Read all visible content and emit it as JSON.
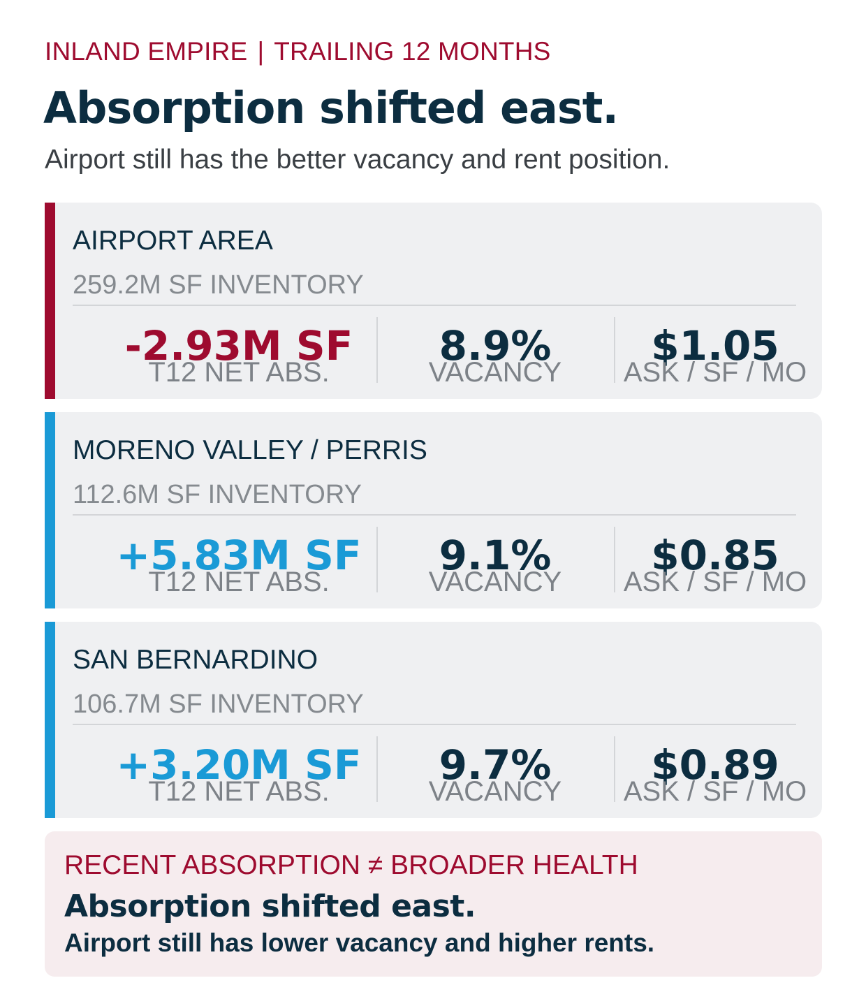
{
  "header": {
    "region": "INLAND EMPIRE",
    "separator": "|",
    "period": "TRAILING 12 MONTHS",
    "title": "Absorption shifted east.",
    "subtitle": "Airport still has the better vacancy and rent position."
  },
  "colors": {
    "negative_accent": "#9e0b2f",
    "positive_accent": "#1a9ad6",
    "ink": "#0c2d40",
    "card_bg": "#eff0f2",
    "callout_bg": "#f6ecee"
  },
  "submarkets": [
    {
      "name": "AIRPORT AREA",
      "inventory": "259.2M SF INVENTORY",
      "abs_value": "-2.93M SF",
      "abs_label": "T12 NET ABS.",
      "vacancy_value": "8.9%",
      "vacancy_label": "VACANCY",
      "rent_value": "$1.05",
      "rent_label": "ASK / SF / MO",
      "trend": "negative"
    },
    {
      "name": "MORENO VALLEY / PERRIS",
      "inventory": "112.6M SF INVENTORY",
      "abs_value": "+5.83M SF",
      "abs_label": "T12 NET ABS.",
      "vacancy_value": "9.1%",
      "vacancy_label": "VACANCY",
      "rent_value": "$0.85",
      "rent_label": "ASK / SF / MO",
      "trend": "positive"
    },
    {
      "name": "SAN BERNARDINO",
      "inventory": "106.7M SF INVENTORY",
      "abs_value": "+3.20M SF",
      "abs_label": "T12 NET ABS.",
      "vacancy_value": "9.7%",
      "vacancy_label": "VACANCY",
      "rent_value": "$0.89",
      "rent_label": "ASK / SF / MO",
      "trend": "positive"
    }
  ],
  "callout": {
    "kicker": "RECENT ABSORPTION ≠ BROADER HEALTH",
    "headline": "Absorption shifted east.",
    "body": "Airport still has lower vacancy and higher rents."
  }
}
